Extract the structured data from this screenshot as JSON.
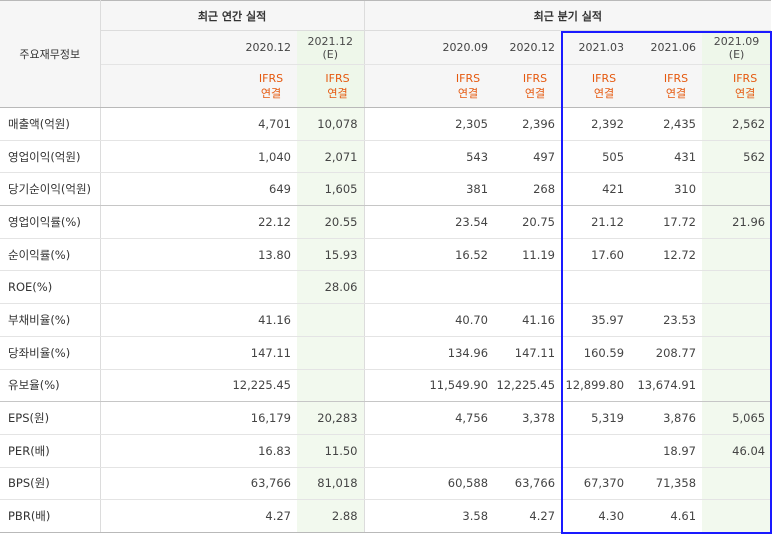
{
  "header": {
    "row_label": "주요재무정보",
    "annual_group": "최근 연간 실적",
    "quarter_group": "최근 분기 실적",
    "annual_periods": [
      "2020.12",
      "2021.12"
    ],
    "annual_est": [
      "",
      "(E)"
    ],
    "quarter_periods": [
      "2020.09",
      "2020.12",
      "2021.03",
      "2021.06",
      "2021.09"
    ],
    "quarter_est": [
      "",
      "",
      "",
      "",
      "(E)"
    ],
    "ifrs_label": "IFRS",
    "consol_label": "연결"
  },
  "rows": [
    {
      "label": "매출액(억원)",
      "annual": [
        "4,701",
        "10,078"
      ],
      "quarter": [
        "2,305",
        "2,396",
        "2,392",
        "2,435",
        "2,562"
      ]
    },
    {
      "label": "영업이익(억원)",
      "annual": [
        "1,040",
        "2,071"
      ],
      "quarter": [
        "543",
        "497",
        "505",
        "431",
        "562"
      ]
    },
    {
      "label": "당기순이익(억원)",
      "annual": [
        "649",
        "1,605"
      ],
      "quarter": [
        "381",
        "268",
        "421",
        "310",
        ""
      ]
    },
    {
      "label": "영업이익률(%)",
      "annual": [
        "22.12",
        "20.55"
      ],
      "quarter": [
        "23.54",
        "20.75",
        "21.12",
        "17.72",
        "21.96"
      ]
    },
    {
      "label": "순이익률(%)",
      "annual": [
        "13.80",
        "15.93"
      ],
      "quarter": [
        "16.52",
        "11.19",
        "17.60",
        "12.72",
        ""
      ]
    },
    {
      "label": "ROE(%)",
      "annual": [
        "",
        "28.06"
      ],
      "quarter": [
        "",
        "",
        "",
        "",
        ""
      ]
    },
    {
      "label": "부채비율(%)",
      "annual": [
        "41.16",
        ""
      ],
      "quarter": [
        "40.70",
        "41.16",
        "35.97",
        "23.53",
        ""
      ]
    },
    {
      "label": "당좌비율(%)",
      "annual": [
        "147.11",
        ""
      ],
      "quarter": [
        "134.96",
        "147.11",
        "160.59",
        "208.77",
        ""
      ]
    },
    {
      "label": "유보율(%)",
      "annual": [
        "12,225.45",
        ""
      ],
      "quarter": [
        "11,549.90",
        "12,225.45",
        "12,899.80",
        "13,674.91",
        ""
      ]
    },
    {
      "label": "EPS(원)",
      "annual": [
        "16,179",
        "20,283"
      ],
      "quarter": [
        "4,756",
        "3,378",
        "5,319",
        "3,876",
        "5,065"
      ]
    },
    {
      "label": "PER(배)",
      "annual": [
        "16.83",
        "11.50"
      ],
      "quarter": [
        "",
        "",
        "",
        "18.97",
        "46.04"
      ]
    },
    {
      "label": "BPS(원)",
      "annual": [
        "63,766",
        "81,018"
      ],
      "quarter": [
        "60,588",
        "63,766",
        "67,370",
        "71,358",
        ""
      ]
    },
    {
      "label": "PBR(배)",
      "annual": [
        "4.27",
        "2.88"
      ],
      "quarter": [
        "3.58",
        "4.27",
        "4.30",
        "4.61",
        ""
      ]
    }
  ],
  "colors": {
    "ifrs": "#e5590f",
    "estimate_bg": "#f2f9ee",
    "highlight_border": "#1a1aff"
  }
}
